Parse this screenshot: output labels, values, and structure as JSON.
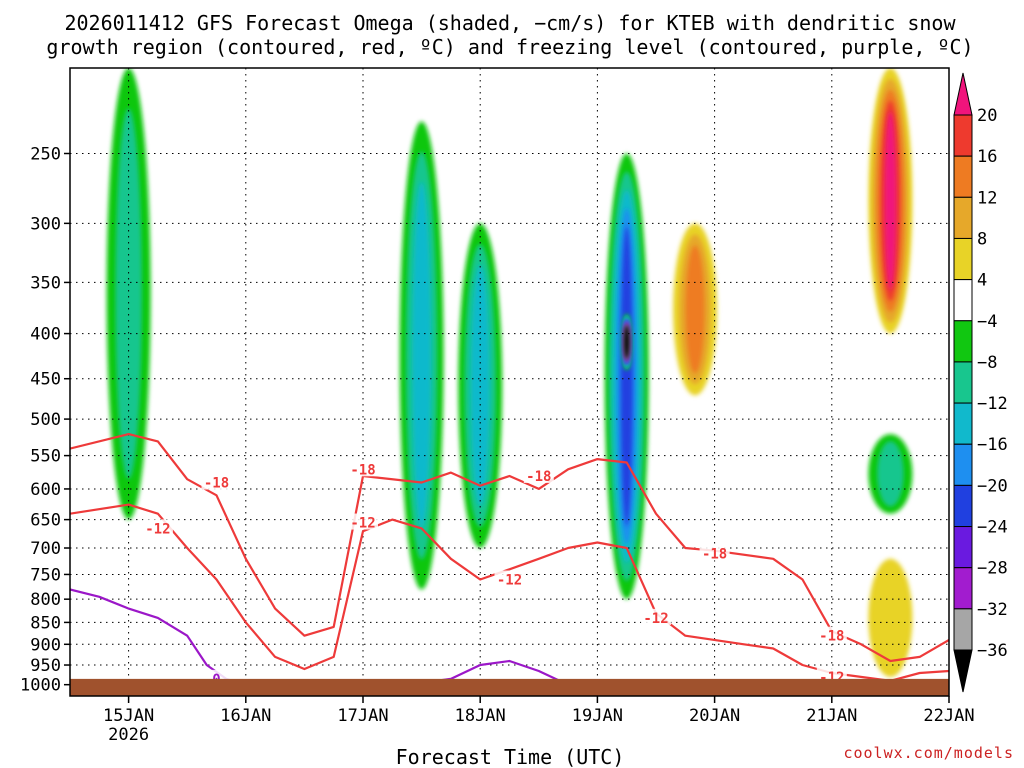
{
  "title": {
    "line1": "2026011412 GFS Forecast Omega (shaded, −cm/s) for KTEB with dendritic snow",
    "line2": "growth region (contoured, red, ºC) and freezing level (contoured, purple, ºC)"
  },
  "xlabel": "Forecast Time (UTC)",
  "credit": "coolwx.com/models",
  "chart_data": {
    "type": "heatmap",
    "x_axis": {
      "label": "Forecast Time (UTC)",
      "ticks": [
        "15JAN",
        "16JAN",
        "17JAN",
        "18JAN",
        "19JAN",
        "20JAN",
        "21JAN",
        "22JAN"
      ],
      "year_label": "2026",
      "range_days": [
        "14JAN 12Z",
        "22JAN 00Z"
      ]
    },
    "y_axis": {
      "label": "",
      "unit": "hPa",
      "scale": "log",
      "ticks": [
        250,
        300,
        350,
        400,
        450,
        500,
        550,
        600,
        650,
        700,
        750,
        800,
        850,
        900,
        950,
        1000
      ],
      "range": [
        200,
        1030
      ]
    },
    "colorbar": {
      "labels": [
        "20",
        "16",
        "12",
        "8",
        "4",
        "−4",
        "−8",
        "−12",
        "−16",
        "−20",
        "−24",
        "−28",
        "−32",
        "−36"
      ],
      "colors": [
        "#f0147c",
        "#ee3a2e",
        "#ee7b22",
        "#e6a82a",
        "#e8d327",
        "#ffffff",
        "#11c711",
        "#18c68e",
        "#11b9cc",
        "#1e8ff0",
        "#2040e0",
        "#6a1ae0",
        "#a21ccf",
        "#a6a6a6",
        "#000000"
      ]
    },
    "omega_features": [
      {
        "time": "15JAN 00Z",
        "p_top": 200,
        "p_bottom": 650,
        "value": -10
      },
      {
        "time": "17JAN 12Z",
        "p_top": 230,
        "p_bottom": 780,
        "value": -12
      },
      {
        "time": "18JAN 00Z",
        "p_top": 300,
        "p_bottom": 700,
        "value": -14
      },
      {
        "time": "19JAN 06Z",
        "p_top": 250,
        "p_bottom": 800,
        "value": -22
      },
      {
        "time": "19JAN 06Z",
        "p_top": 380,
        "p_bottom": 440,
        "value": -36
      },
      {
        "time": "19JAN 20Z",
        "p_top": 300,
        "p_bottom": 470,
        "value": 14
      },
      {
        "time": "21JAN 12Z",
        "p_top": 200,
        "p_bottom": 400,
        "value": 20
      },
      {
        "time": "21JAN 12Z",
        "p_top": 520,
        "p_bottom": 640,
        "value": -8
      },
      {
        "time": "21JAN 12Z",
        "p_top": 720,
        "p_bottom": 980,
        "value": 6
      }
    ],
    "series": [
      {
        "name": "-18",
        "color": "#ee3a3a",
        "labels": [
          {
            "time": "15JAN 18Z",
            "p": 590
          },
          {
            "time": "17JAN 00Z",
            "p": 570
          },
          {
            "time": "18JAN 12Z",
            "p": 580
          },
          {
            "time": "20JAN 00Z",
            "p": 710
          },
          {
            "time": "21JAN 00Z",
            "p": 880
          }
        ],
        "points": [
          {
            "t": "14JAN 12Z",
            "p": 540
          },
          {
            "t": "15JAN 00Z",
            "p": 520
          },
          {
            "t": "15JAN 06Z",
            "p": 530
          },
          {
            "t": "15JAN 12Z",
            "p": 585
          },
          {
            "t": "15JAN 18Z",
            "p": 610
          },
          {
            "t": "16JAN 00Z",
            "p": 720
          },
          {
            "t": "16JAN 06Z",
            "p": 820
          },
          {
            "t": "16JAN 12Z",
            "p": 880
          },
          {
            "t": "16JAN 18Z",
            "p": 860
          },
          {
            "t": "17JAN 00Z",
            "p": 580
          },
          {
            "t": "17JAN 12Z",
            "p": 590
          },
          {
            "t": "17JAN 18Z",
            "p": 575
          },
          {
            "t": "18JAN 00Z",
            "p": 595
          },
          {
            "t": "18JAN 06Z",
            "p": 580
          },
          {
            "t": "18JAN 12Z",
            "p": 600
          },
          {
            "t": "18JAN 18Z",
            "p": 570
          },
          {
            "t": "19JAN 00Z",
            "p": 555
          },
          {
            "t": "19JAN 06Z",
            "p": 560
          },
          {
            "t": "19JAN 12Z",
            "p": 640
          },
          {
            "t": "19JAN 18Z",
            "p": 700
          },
          {
            "t": "20JAN 00Z",
            "p": 705
          },
          {
            "t": "20JAN 12Z",
            "p": 720
          },
          {
            "t": "20JAN 18Z",
            "p": 760
          },
          {
            "t": "21JAN 00Z",
            "p": 870
          },
          {
            "t": "21JAN 06Z",
            "p": 900
          },
          {
            "t": "21JAN 12Z",
            "p": 940
          },
          {
            "t": "21JAN 18Z",
            "p": 930
          },
          {
            "t": "22JAN 00Z",
            "p": 890
          }
        ]
      },
      {
        "name": "-12",
        "color": "#ee3a3a",
        "labels": [
          {
            "time": "15JAN 06Z",
            "p": 665
          },
          {
            "time": "17JAN 00Z",
            "p": 655
          },
          {
            "time": "18JAN 06Z",
            "p": 760
          },
          {
            "time": "19JAN 12Z",
            "p": 840
          },
          {
            "time": "21JAN 00Z",
            "p": 980
          }
        ],
        "points": [
          {
            "t": "14JAN 12Z",
            "p": 640
          },
          {
            "t": "15JAN 00Z",
            "p": 625
          },
          {
            "t": "15JAN 06Z",
            "p": 640
          },
          {
            "t": "15JAN 12Z",
            "p": 700
          },
          {
            "t": "15JAN 18Z",
            "p": 760
          },
          {
            "t": "16JAN 00Z",
            "p": 850
          },
          {
            "t": "16JAN 06Z",
            "p": 930
          },
          {
            "t": "16JAN 12Z",
            "p": 960
          },
          {
            "t": "16JAN 18Z",
            "p": 930
          },
          {
            "t": "17JAN 00Z",
            "p": 670
          },
          {
            "t": "17JAN 06Z",
            "p": 650
          },
          {
            "t": "17JAN 12Z",
            "p": 665
          },
          {
            "t": "17JAN 18Z",
            "p": 720
          },
          {
            "t": "18JAN 00Z",
            "p": 760
          },
          {
            "t": "18JAN 06Z",
            "p": 740
          },
          {
            "t": "18JAN 12Z",
            "p": 720
          },
          {
            "t": "18JAN 18Z",
            "p": 700
          },
          {
            "t": "19JAN 00Z",
            "p": 690
          },
          {
            "t": "19JAN 06Z",
            "p": 700
          },
          {
            "t": "19JAN 12Z",
            "p": 830
          },
          {
            "t": "19JAN 18Z",
            "p": 880
          },
          {
            "t": "20JAN 06Z",
            "p": 900
          },
          {
            "t": "20JAN 12Z",
            "p": 910
          },
          {
            "t": "20JAN 18Z",
            "p": 950
          },
          {
            "t": "21JAN 00Z",
            "p": 970
          },
          {
            "t": "21JAN 12Z",
            "p": 990
          },
          {
            "t": "21JAN 18Z",
            "p": 970
          },
          {
            "t": "22JAN 00Z",
            "p": 965
          }
        ]
      },
      {
        "name": "0",
        "color": "#9b17c8",
        "labels": [
          {
            "time": "15JAN 18Z",
            "p": 985
          }
        ],
        "points": [
          {
            "t": "14JAN 12Z",
            "p": 780
          },
          {
            "t": "14JAN 18Z",
            "p": 795
          },
          {
            "t": "15JAN 00Z",
            "p": 820
          },
          {
            "t": "15JAN 06Z",
            "p": 840
          },
          {
            "t": "15JAN 12Z",
            "p": 880
          },
          {
            "t": "15JAN 16Z",
            "p": 950
          },
          {
            "t": "15JAN 20Z",
            "p": 985
          },
          {
            "t": "16JAN 00Z",
            "p": 1000
          },
          {
            "t": "16JAN 12Z",
            "p": 1005
          },
          {
            "t": "17JAN 00Z",
            "p": 1000
          },
          {
            "t": "17JAN 12Z",
            "p": 995
          },
          {
            "t": "17JAN 18Z",
            "p": 985
          },
          {
            "t": "18JAN 00Z",
            "p": 950
          },
          {
            "t": "18JAN 06Z",
            "p": 940
          },
          {
            "t": "18JAN 12Z",
            "p": 965
          },
          {
            "t": "18JAN 18Z",
            "p": 1000
          }
        ]
      }
    ],
    "surface": {
      "color": "#a0522d",
      "p": 985
    }
  }
}
